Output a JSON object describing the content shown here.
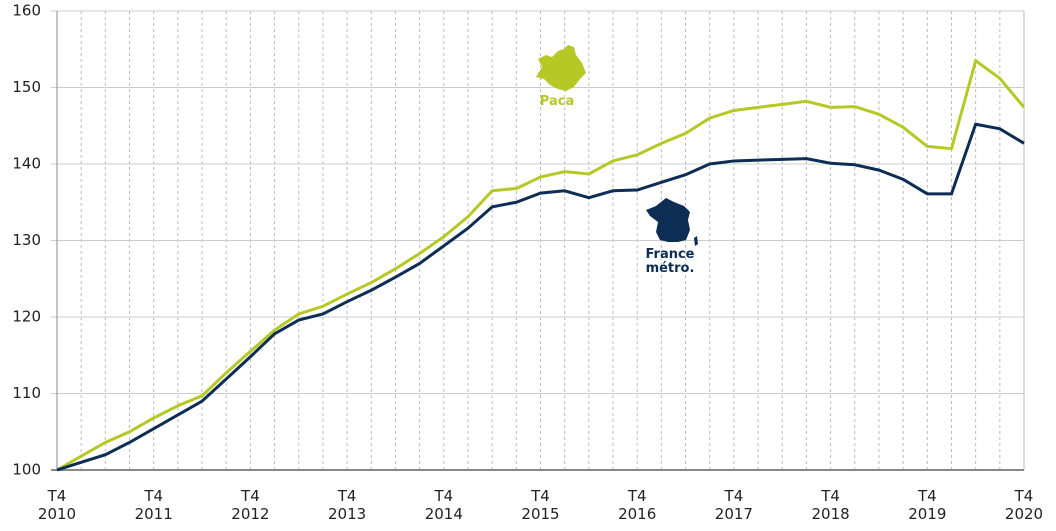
{
  "chart_data": {
    "type": "line",
    "categories": [
      "T4 2010",
      null,
      null,
      null,
      "T4 2011",
      null,
      null,
      null,
      "T4 2012",
      null,
      null,
      null,
      "T4 2013",
      null,
      null,
      null,
      "T4 2014",
      null,
      null,
      null,
      "T4 2015",
      null,
      null,
      null,
      "T4 2016",
      null,
      null,
      null,
      "T4 2017",
      null,
      null,
      null,
      "T4 2018",
      null,
      null,
      null,
      "T4 2019",
      null,
      null,
      null,
      "T4 2020"
    ],
    "series": [
      {
        "name": "Paca",
        "color": "#b5c826",
        "values": [
          100,
          101.8,
          103.6,
          105,
          106.8,
          108.4,
          109.7,
          112.7,
          115.5,
          118.3,
          120.4,
          121.4,
          123,
          124.5,
          126.3,
          128.3,
          130.5,
          133.1,
          136.5,
          136.8,
          138.3,
          139,
          138.7,
          140.4,
          141.2,
          142.7,
          144,
          146,
          147,
          147.4,
          147.8,
          148.2,
          147.4,
          147.5,
          146.5,
          144.8,
          142.3,
          142,
          153.5,
          151.2,
          147.4
        ]
      },
      {
        "name": "France métro.",
        "color": "#0d2d54",
        "values": [
          100,
          101,
          102,
          103.6,
          105.4,
          107.2,
          109,
          111.9,
          114.8,
          117.8,
          119.6,
          120.4,
          122,
          123.5,
          125.2,
          127,
          129.3,
          131.6,
          134.4,
          135,
          136.2,
          136.5,
          135.6,
          136.5,
          136.6,
          137.6,
          138.6,
          140,
          140.4,
          140.5,
          140.6,
          140.7,
          140.1,
          139.9,
          139.2,
          138,
          136.1,
          136.1,
          145.2,
          144.6,
          142.7
        ]
      }
    ],
    "ylim": [
      100,
      160
    ],
    "yticks": [
      100,
      110,
      120,
      130,
      140,
      150,
      160
    ],
    "grid": true
  }
}
